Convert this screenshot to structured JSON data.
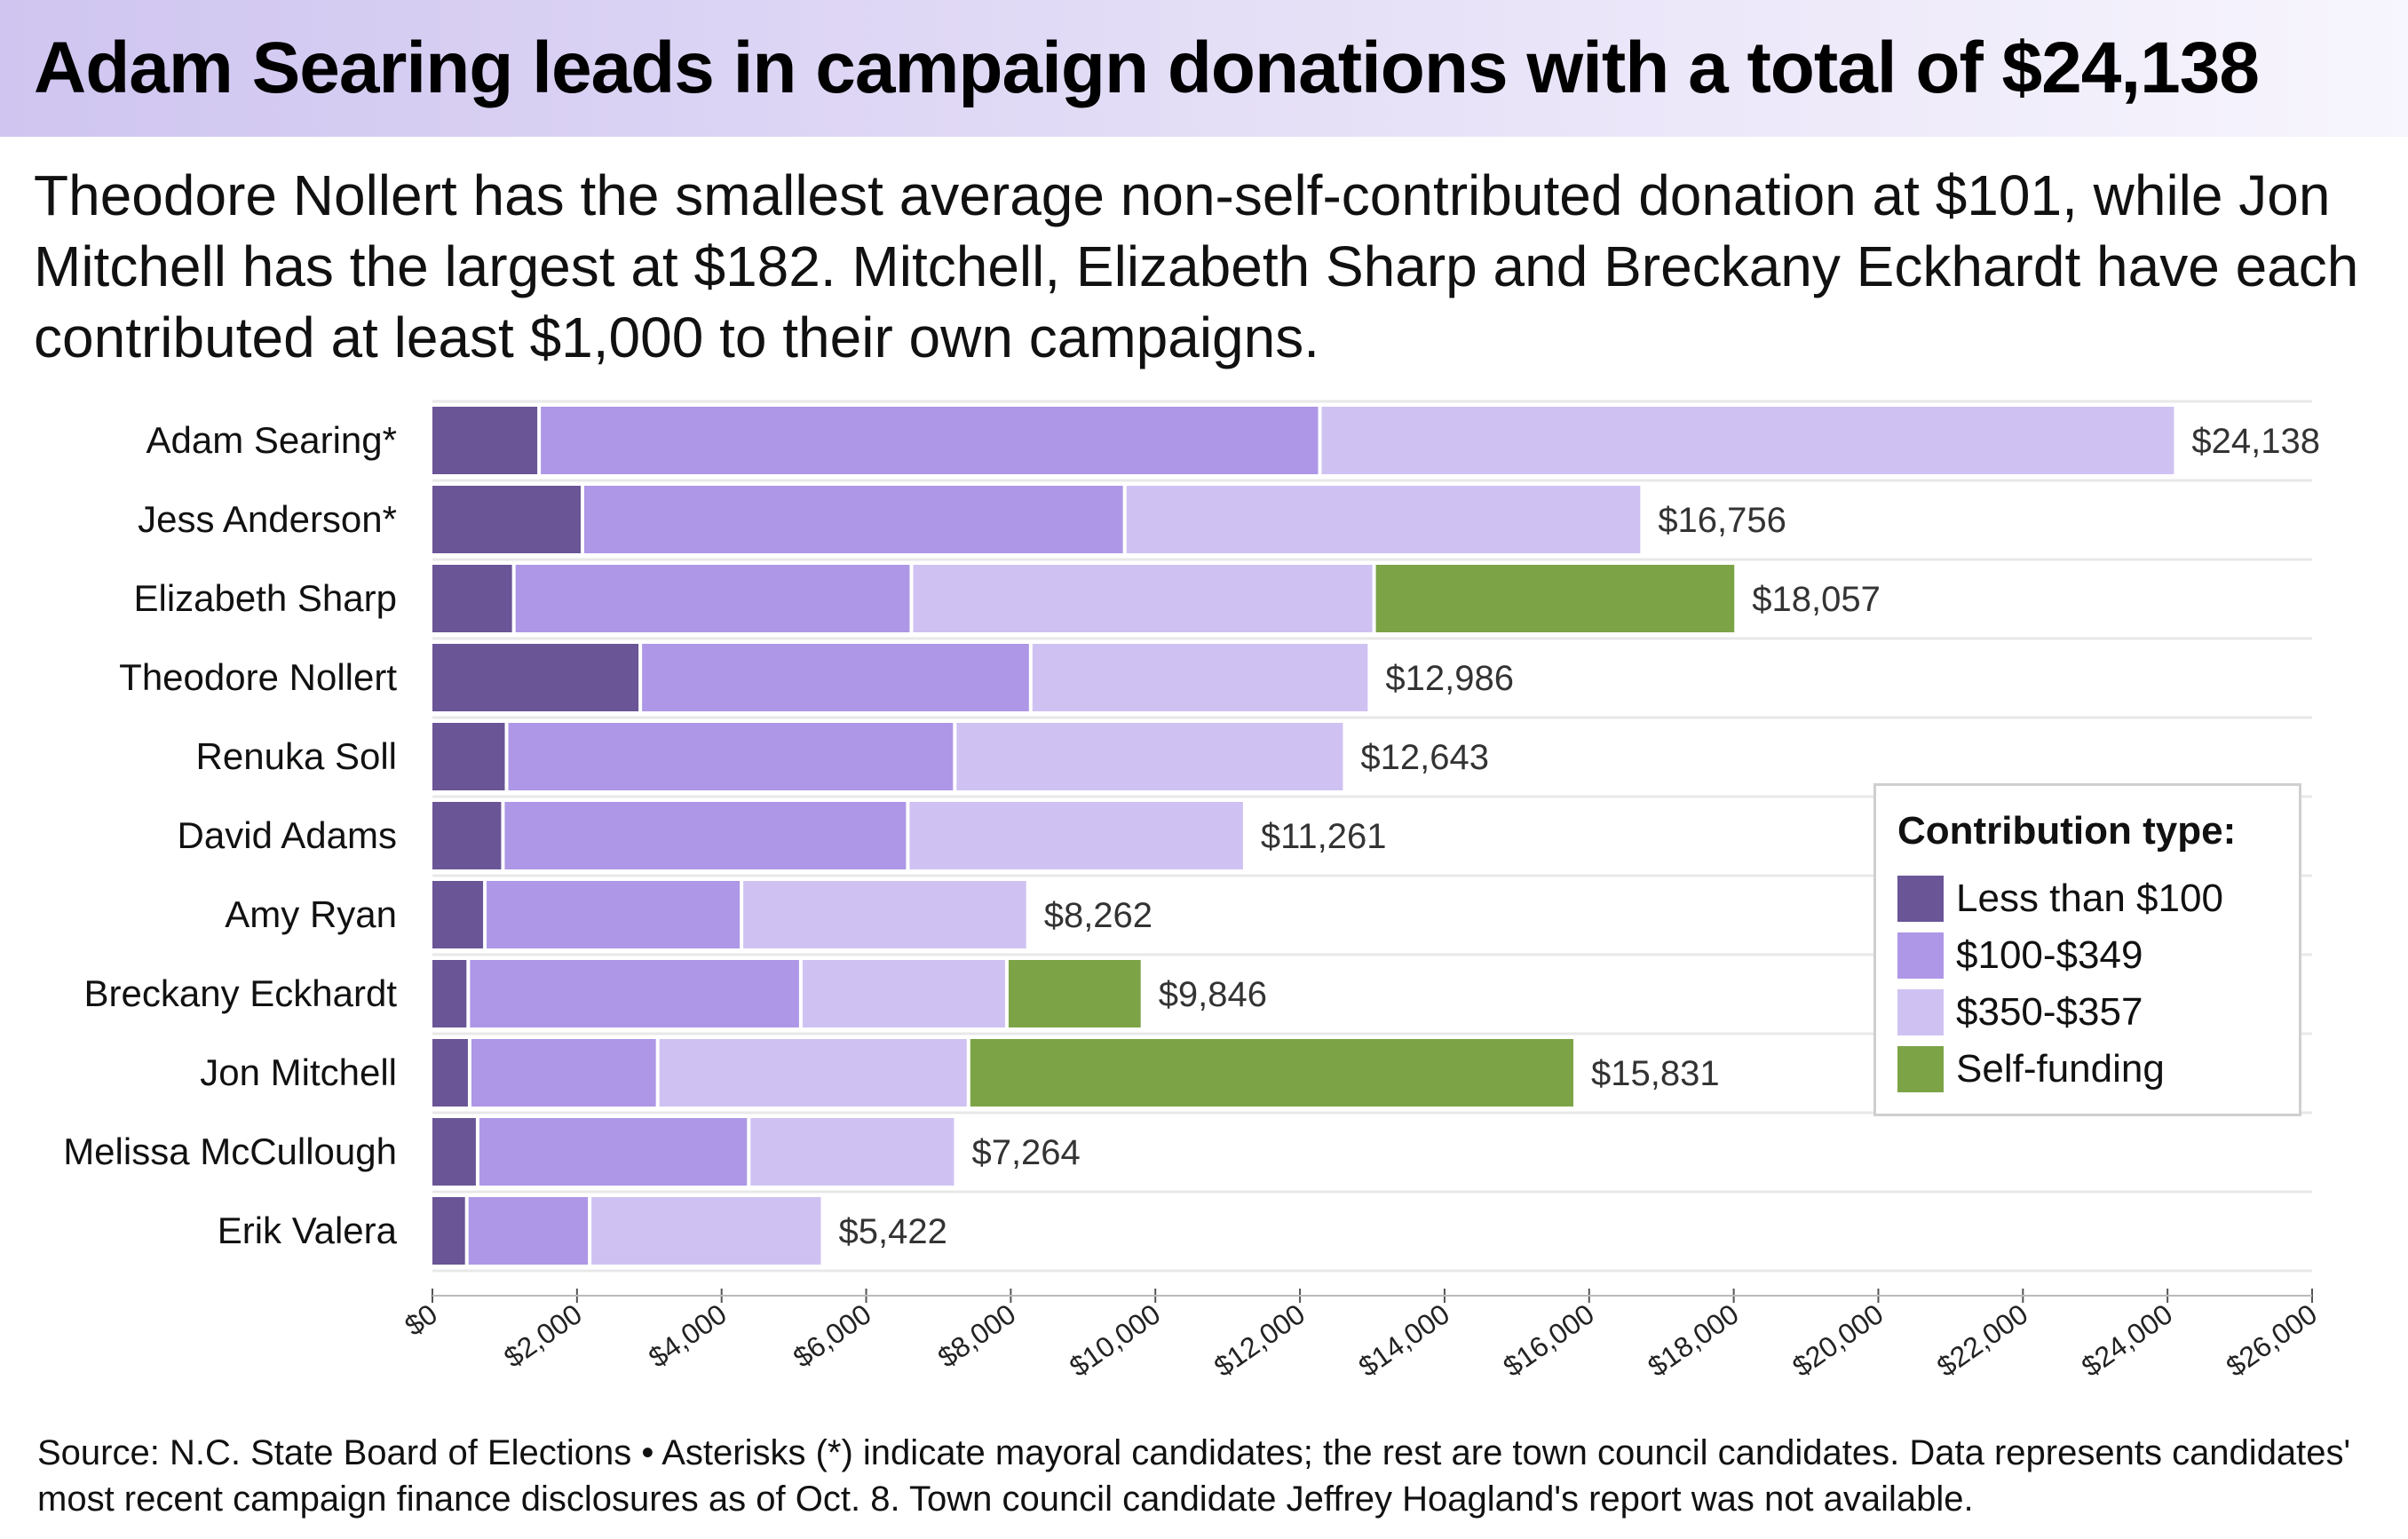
{
  "header": {
    "title": "Adam Searing leads in campaign donations with a total of $24,138",
    "subtitle": "Theodore Nollert has the smallest average non-self-contributed donation at $101, while Jon Mitchell has the largest at $182. Mitchell, Elizabeth Sharp and Breckany Eckhardt have each contributed at least $1,000 to their own campaigns."
  },
  "footer": {
    "source": "Source: N.C. State Board of Elections • Asterisks (*) indicate mayoral candidates; the rest are town council candidates. Data represents candidates' most recent campaign finance disclosures as of Oct. 8. Town council candidate Jeffrey Hoagland's report was not available."
  },
  "legend": {
    "title": "Contribution type:",
    "items": [
      {
        "label": "Less than $100",
        "color": "#6a5597"
      },
      {
        "label": "$100-$349",
        "color": "#ad97e6"
      },
      {
        "label": "$350-$357",
        "color": "#cfc2f2"
      },
      {
        "label": "Self-funding",
        "color": "#7ca447"
      }
    ]
  },
  "chart_data": {
    "type": "bar",
    "orientation": "horizontal",
    "stacked": true,
    "categories": [
      "Adam Searing*",
      "Jess Anderson*",
      "Elizabeth Sharp",
      "Theodore Nollert",
      "Renuka Soll",
      "David Adams",
      "Amy Ryan",
      "Breckany Eckhardt",
      "Jon Mitchell",
      "Melissa McCullough",
      "Erik Valera"
    ],
    "series": [
      {
        "name": "Less than $100",
        "color": "#6a5597",
        "values": [
          1500,
          2100,
          1150,
          2900,
          1050,
          1000,
          750,
          520,
          540,
          650,
          500
        ]
      },
      {
        "name": "$100-$349",
        "color": "#ad97e6",
        "values": [
          10800,
          7500,
          5500,
          5400,
          6200,
          5600,
          3550,
          4600,
          2600,
          3750,
          1700
        ]
      },
      {
        "name": "$350-$357",
        "color": "#cfc2f2",
        "values": [
          11838,
          7156,
          6400,
          4686,
          5393,
          4661,
          3962,
          2850,
          4300,
          2864,
          3222
        ]
      },
      {
        "name": "Self-funding",
        "color": "#7ca447",
        "values": [
          0,
          0,
          5007,
          0,
          0,
          0,
          0,
          1876,
          8391,
          0,
          0
        ]
      }
    ],
    "totals": [
      "$24,138",
      "$16,756",
      "$18,057",
      "$12,986",
      "$12,643",
      "$11,261",
      "$8,262",
      "$9,846",
      "$15,831",
      "$7,264",
      "$5,422"
    ],
    "x_ticks": [
      "$0",
      "$2,000",
      "$4,000",
      "$6,000",
      "$8,000",
      "$10,000",
      "$12,000",
      "$14,000",
      "$16,000",
      "$18,000",
      "$20,000",
      "$22,000",
      "$24,000",
      "$26,000"
    ],
    "xlim": [
      0,
      26000
    ],
    "grid": true,
    "legend_position": "right"
  }
}
